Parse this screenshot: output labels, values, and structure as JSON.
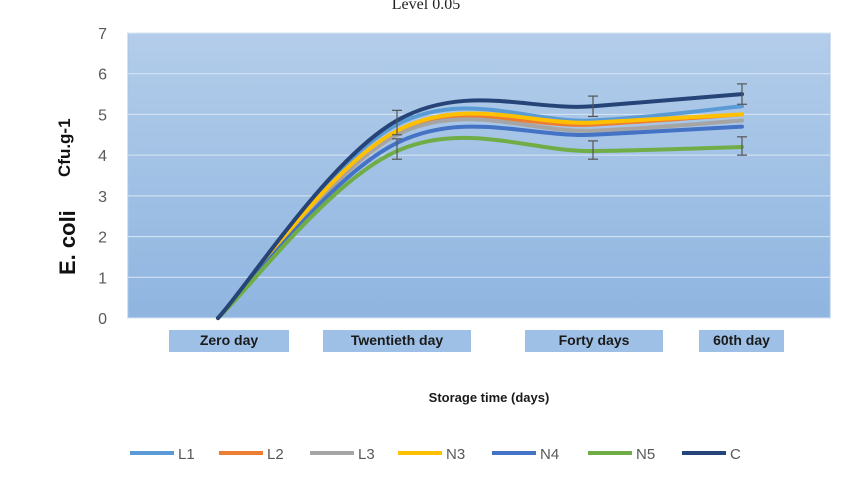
{
  "chart_data": {
    "type": "line",
    "title": "Level 0.05",
    "ylabel_parts": [
      "E. coli",
      "Cfu.g-1"
    ],
    "xlabel": "Storage time (days)",
    "categories": [
      "Zero day",
      "Twentieth day",
      "Forty days",
      "60th day"
    ],
    "ylim": [
      0,
      7
    ],
    "yticks": [
      "0",
      "1",
      "2",
      "3",
      "4",
      "5",
      "6",
      "7"
    ],
    "grid": true,
    "legend_position": "bottom",
    "series": [
      {
        "name": "L1",
        "color": "#5b9bd5",
        "values": [
          0,
          4.75,
          4.85,
          5.2
        ]
      },
      {
        "name": "L2",
        "color": "#ed7d31",
        "values": [
          0,
          4.5,
          4.75,
          5.0
        ]
      },
      {
        "name": "L3",
        "color": "#a5a5a5",
        "values": [
          0,
          4.5,
          4.6,
          4.85
        ]
      },
      {
        "name": "N3",
        "color": "#ffc000",
        "values": [
          0,
          4.6,
          4.8,
          5.0
        ]
      },
      {
        "name": "N4",
        "color": "#4472c4",
        "values": [
          0,
          4.3,
          4.5,
          4.7
        ]
      },
      {
        "name": "N5",
        "color": "#70ad47",
        "values": [
          0,
          4.1,
          4.1,
          4.2
        ]
      },
      {
        "name": "C",
        "color": "#264478",
        "values": [
          0,
          4.85,
          5.2,
          5.5
        ]
      }
    ],
    "error_bars": {
      "Twentieth day": [
        [
          3.9,
          4.4
        ],
        [
          4.5,
          5.1
        ]
      ],
      "Forty days": [
        [
          3.9,
          4.35
        ],
        [
          4.95,
          5.45
        ]
      ],
      "60th day": [
        [
          4.0,
          4.45
        ],
        [
          5.25,
          5.75
        ]
      ]
    }
  }
}
